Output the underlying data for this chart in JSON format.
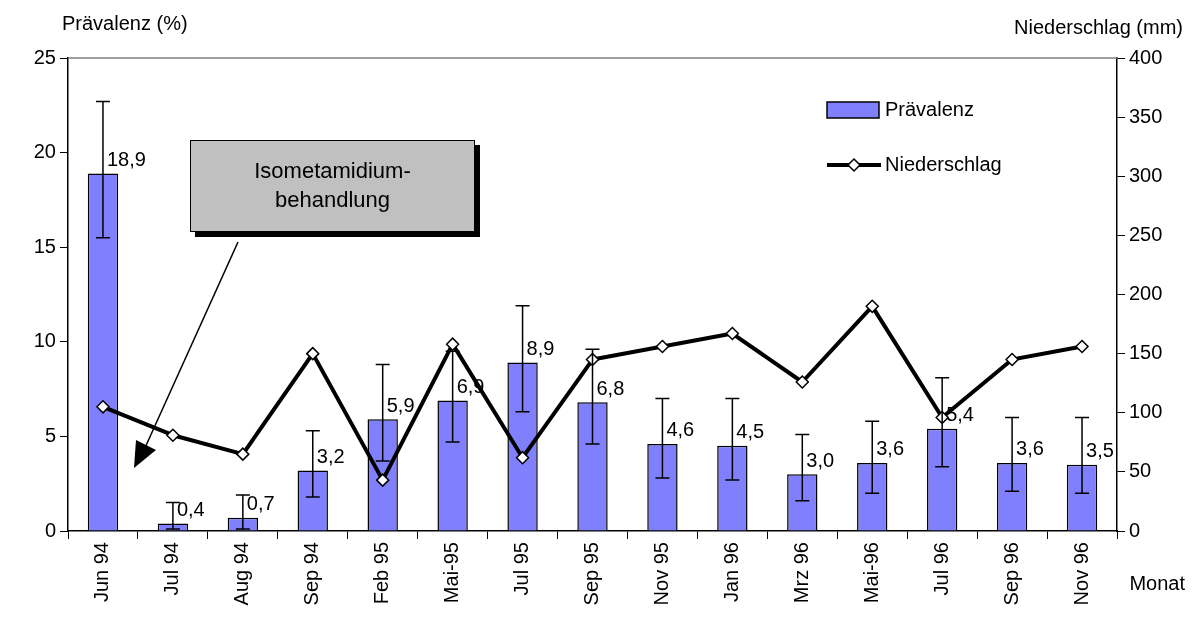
{
  "chart_data": {
    "type": "bar",
    "ylabel": "Prävalenz (%)",
    "y2label": "Niederschlag (mm)",
    "xlabel": "Monat",
    "categories": [
      "Jun 94",
      "Jul 94",
      "Aug 94",
      "Sep 94",
      "Feb 95",
      "Mai-95",
      "Jul 95",
      "Sep 95",
      "Nov 95",
      "Jan 96",
      "Mrz 96",
      "Mai-96",
      "Jul 96",
      "Sep 96",
      "Nov 96"
    ],
    "series": [
      {
        "name": "Prävalenz",
        "color": "#8080ff",
        "values": [
          18.9,
          0.4,
          0.7,
          3.2,
          5.9,
          6.9,
          8.9,
          6.8,
          4.6,
          4.5,
          3.0,
          3.6,
          5.4,
          3.6,
          3.5
        ],
        "value_labels": [
          "18,9",
          "0,4",
          "0,7",
          "3,2",
          "5,9",
          "6,9",
          "8,9",
          "6,8",
          "4,6",
          "4,5",
          "3,0",
          "3,6",
          "5,4",
          "3,6",
          "3,5"
        ],
        "errors": [
          [
            15.5,
            22.7
          ],
          [
            0.1,
            1.5
          ],
          [
            0.1,
            1.9
          ],
          [
            1.8,
            5.3
          ],
          [
            3.7,
            8.8
          ],
          [
            4.7,
            9.5
          ],
          [
            6.3,
            11.9
          ],
          [
            4.6,
            9.6
          ],
          [
            2.8,
            7.0
          ],
          [
            2.7,
            7.0
          ],
          [
            1.6,
            5.1
          ],
          [
            2.0,
            5.8
          ],
          [
            3.4,
            8.1
          ],
          [
            2.1,
            6.0
          ],
          [
            2.0,
            6.0
          ]
        ]
      },
      {
        "name": "Niederschlag",
        "type": "line",
        "axis": "y2",
        "color": "#000000",
        "marker": "diamond",
        "values": [
          105,
          81,
          65,
          150,
          43,
          158,
          62,
          145,
          156,
          167,
          126,
          190,
          96,
          145,
          156
        ]
      }
    ],
    "ylim": [
      0,
      25
    ],
    "yticks": [
      0,
      5,
      10,
      15,
      20,
      25
    ],
    "y2lim": [
      0,
      400
    ],
    "y2ticks": [
      0,
      50,
      100,
      150,
      200,
      250,
      300,
      350,
      400
    ],
    "grid": false,
    "legend": "top right",
    "annotations": [
      "Isometamidium-behandlung"
    ]
  }
}
